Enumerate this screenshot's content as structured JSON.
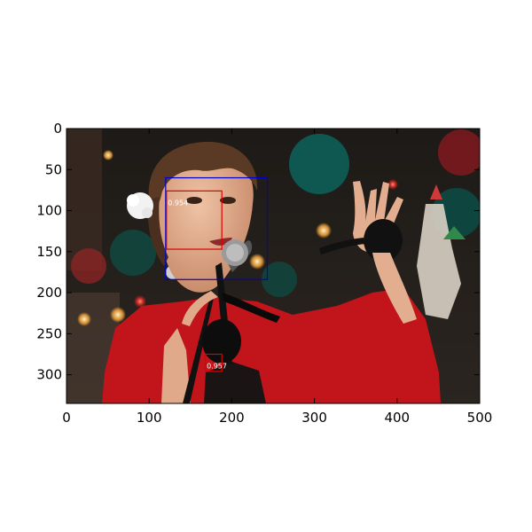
{
  "chart_data": {
    "type": "image_with_detection_boxes",
    "xlim": [
      0,
      500
    ],
    "ylim": [
      335,
      0
    ],
    "x_ticks": [
      0,
      100,
      200,
      300,
      400,
      500
    ],
    "y_ticks": [
      0,
      50,
      100,
      150,
      200,
      250,
      300
    ],
    "image": {
      "content": "woman singing at a microphone in a red jacket, holding a maraca, colorful party background",
      "source_size": [
        500,
        335
      ]
    },
    "boxes": [
      {
        "color": "#0000cc",
        "x1": 120,
        "y1": 60,
        "x2": 243,
        "y2": 184,
        "score": ""
      },
      {
        "color": "#dd0000",
        "x1": 121,
        "y1": 76,
        "x2": 188,
        "y2": 147,
        "score": "0.954"
      },
      {
        "color": "#dd0000",
        "x1": 168,
        "y1": 275,
        "x2": 188,
        "y2": 296,
        "score": "0.957"
      }
    ]
  }
}
